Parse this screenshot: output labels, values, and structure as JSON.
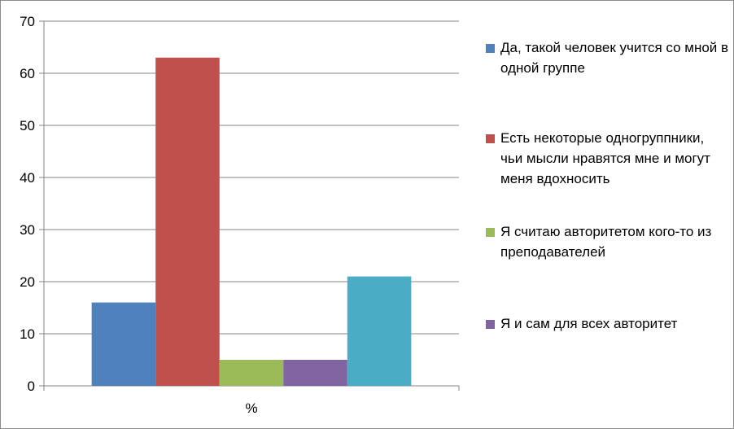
{
  "chart_data": {
    "type": "bar",
    "categories": [
      "%"
    ],
    "series": [
      {
        "name": "Да, такой человек учится со мной в одной группе",
        "values": [
          16
        ],
        "color": "#4f81bd"
      },
      {
        "name": "Есть некоторые одногруппники, чьи мысли нравятся мне и могут меня вдохносить",
        "values": [
          63
        ],
        "color": "#c0504d"
      },
      {
        "name": "Я считаю авторитетом кого-то из преподавателей",
        "values": [
          5
        ],
        "color": "#9bbb59"
      },
      {
        "name": "Я и сам для всех авторитет",
        "values": [
          5
        ],
        "color": "#8064a2"
      },
      {
        "name": "",
        "values": [
          21
        ],
        "color": "#4bacc6"
      }
    ],
    "yticks": [
      0,
      10,
      20,
      30,
      40,
      50,
      60,
      70
    ],
    "ylim": [
      0,
      70
    ],
    "grid": true,
    "legend": "right"
  }
}
